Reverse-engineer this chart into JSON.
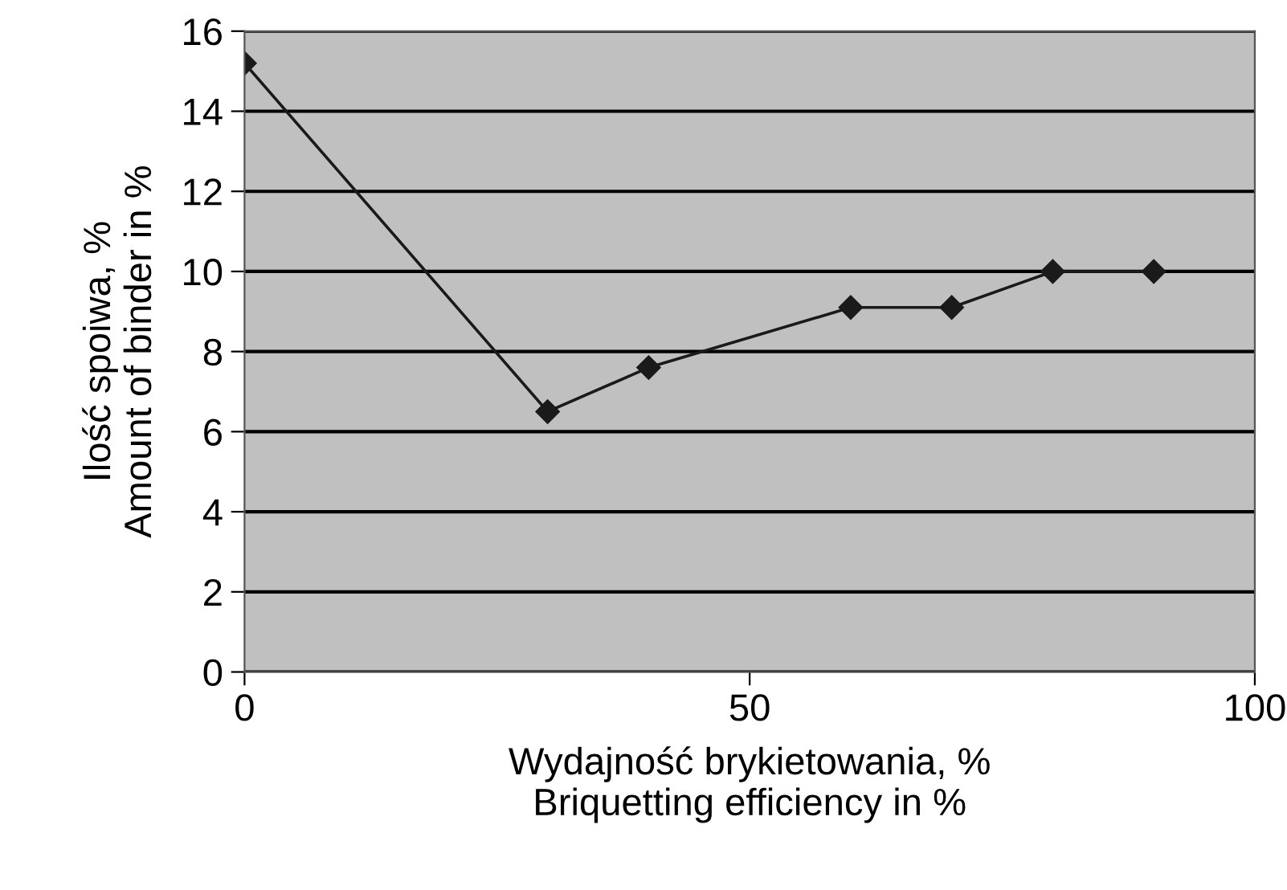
{
  "chart_data": {
    "type": "line",
    "xlabel": "Wydajność brykietowania, %\nBriquetting efficiency in %",
    "ylabel": "Ilość spoiwa, %\nAmount of binder in %",
    "x": [
      0,
      30,
      40,
      60,
      70,
      80,
      90
    ],
    "series": [
      {
        "color": "#1a1a1a",
        "values": [
          15.2,
          6.5,
          7.6,
          9.1,
          9.1,
          10.0,
          10.0
        ]
      }
    ],
    "xlim": [
      0,
      100
    ],
    "xticks": [
      0,
      50,
      100
    ],
    "ylim": [
      0,
      16
    ],
    "yticks": [
      0,
      2,
      4,
      6,
      8,
      10,
      12,
      14,
      16
    ],
    "grid": "y",
    "marker": "diamond",
    "line_style": "solid",
    "legend": false
  }
}
